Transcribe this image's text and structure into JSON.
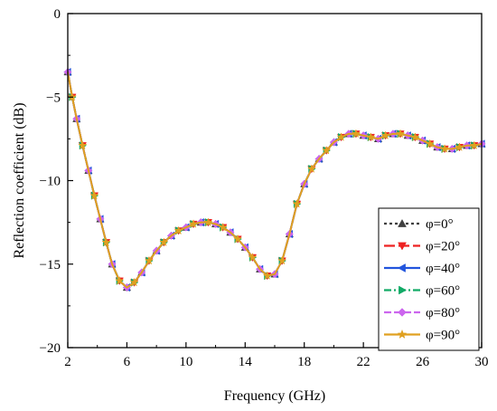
{
  "chart_data": {
    "type": "line",
    "title": "",
    "xlabel": "Frequency (GHz)",
    "ylabel": "Reflection coefficient (dB)",
    "xlim": [
      2,
      30
    ],
    "ylim": [
      -20,
      0
    ],
    "xticks": [
      "2",
      "6",
      "10",
      "14",
      "18",
      "22",
      "26",
      "30"
    ],
    "yticks": [
      "0",
      "-5",
      "-10",
      "-15",
      "-20"
    ],
    "grid": false,
    "legend_position": "bottom-right",
    "x": [
      2,
      2.3,
      2.6,
      3,
      3.4,
      3.8,
      4.2,
      4.6,
      5,
      5.5,
      6,
      6.5,
      7,
      7.5,
      8,
      8.5,
      9,
      9.5,
      10,
      10.5,
      11,
      11.5,
      12,
      12.5,
      13,
      13.5,
      14,
      14.5,
      15,
      15.5,
      16,
      16.5,
      17,
      17.5,
      18,
      18.5,
      19,
      19.5,
      20,
      20.5,
      21,
      21.5,
      22,
      22.5,
      23,
      23.5,
      24,
      24.5,
      25,
      25.5,
      26,
      26.5,
      27,
      27.5,
      28,
      28.5,
      29,
      29.5,
      30
    ],
    "series": [
      {
        "name": "φ=0°",
        "color": "#404040",
        "marker": "triangle-up",
        "dash": "3,3",
        "values": [
          -3.5,
          -5.0,
          -6.3,
          -7.9,
          -9.4,
          -10.9,
          -12.3,
          -13.7,
          -15.0,
          -16.0,
          -16.4,
          -16.1,
          -15.5,
          -14.8,
          -14.2,
          -13.7,
          -13.3,
          -13.0,
          -12.8,
          -12.6,
          -12.5,
          -12.5,
          -12.6,
          -12.8,
          -13.1,
          -13.5,
          -14.0,
          -14.6,
          -15.3,
          -15.7,
          -15.6,
          -14.8,
          -13.2,
          -11.4,
          -10.2,
          -9.3,
          -8.7,
          -8.2,
          -7.7,
          -7.4,
          -7.2,
          -7.2,
          -7.3,
          -7.4,
          -7.5,
          -7.3,
          -7.2,
          -7.2,
          -7.3,
          -7.4,
          -7.6,
          -7.8,
          -8.0,
          -8.1,
          -8.1,
          -8.0,
          -7.9,
          -7.9,
          -7.8
        ]
      },
      {
        "name": "φ=20°",
        "color": "#ee2222",
        "marker": "triangle-down",
        "dash": "12,4",
        "values": [
          -3.5,
          -5.0,
          -6.3,
          -7.9,
          -9.4,
          -10.9,
          -12.3,
          -13.7,
          -15.0,
          -16.0,
          -16.4,
          -16.1,
          -15.5,
          -14.8,
          -14.2,
          -13.7,
          -13.3,
          -13.0,
          -12.8,
          -12.6,
          -12.5,
          -12.5,
          -12.6,
          -12.8,
          -13.1,
          -13.5,
          -14.0,
          -14.6,
          -15.3,
          -15.7,
          -15.6,
          -14.8,
          -13.2,
          -11.4,
          -10.2,
          -9.3,
          -8.7,
          -8.2,
          -7.7,
          -7.4,
          -7.2,
          -7.2,
          -7.3,
          -7.4,
          -7.5,
          -7.3,
          -7.2,
          -7.2,
          -7.3,
          -7.4,
          -7.6,
          -7.8,
          -8.0,
          -8.1,
          -8.1,
          -8.0,
          -7.9,
          -7.9,
          -7.8
        ]
      },
      {
        "name": "φ=40°",
        "color": "#2255dd",
        "marker": "triangle-left",
        "dash": "",
        "values": [
          -3.5,
          -5.0,
          -6.3,
          -7.9,
          -9.4,
          -10.9,
          -12.3,
          -13.7,
          -15.0,
          -16.0,
          -16.4,
          -16.1,
          -15.5,
          -14.8,
          -14.2,
          -13.7,
          -13.3,
          -13.0,
          -12.8,
          -12.6,
          -12.5,
          -12.5,
          -12.6,
          -12.8,
          -13.1,
          -13.5,
          -14.0,
          -14.6,
          -15.3,
          -15.7,
          -15.6,
          -14.8,
          -13.2,
          -11.4,
          -10.2,
          -9.3,
          -8.7,
          -8.2,
          -7.7,
          -7.4,
          -7.2,
          -7.2,
          -7.3,
          -7.4,
          -7.5,
          -7.3,
          -7.2,
          -7.2,
          -7.3,
          -7.4,
          -7.6,
          -7.8,
          -8.0,
          -8.1,
          -8.1,
          -8.0,
          -7.9,
          -7.9,
          -7.8
        ]
      },
      {
        "name": "φ=60°",
        "color": "#11aa66",
        "marker": "triangle-right",
        "dash": "8,3,2,3",
        "values": [
          -3.5,
          -5.0,
          -6.3,
          -7.9,
          -9.4,
          -10.9,
          -12.3,
          -13.7,
          -15.0,
          -16.0,
          -16.4,
          -16.1,
          -15.5,
          -14.8,
          -14.2,
          -13.7,
          -13.3,
          -13.0,
          -12.8,
          -12.6,
          -12.5,
          -12.5,
          -12.6,
          -12.8,
          -13.1,
          -13.5,
          -14.0,
          -14.6,
          -15.3,
          -15.7,
          -15.6,
          -14.8,
          -13.2,
          -11.4,
          -10.2,
          -9.3,
          -8.7,
          -8.2,
          -7.7,
          -7.4,
          -7.2,
          -7.2,
          -7.3,
          -7.4,
          -7.5,
          -7.3,
          -7.2,
          -7.2,
          -7.3,
          -7.4,
          -7.6,
          -7.8,
          -8.0,
          -8.1,
          -8.1,
          -8.0,
          -7.9,
          -7.9,
          -7.8
        ]
      },
      {
        "name": "φ=80°",
        "color": "#cc66ee",
        "marker": "diamond",
        "dash": "8,3",
        "values": [
          -3.5,
          -5.0,
          -6.3,
          -7.9,
          -9.4,
          -10.9,
          -12.3,
          -13.7,
          -15.0,
          -16.0,
          -16.4,
          -16.1,
          -15.5,
          -14.8,
          -14.2,
          -13.7,
          -13.3,
          -13.0,
          -12.8,
          -12.6,
          -12.5,
          -12.5,
          -12.6,
          -12.8,
          -13.1,
          -13.5,
          -14.0,
          -14.6,
          -15.3,
          -15.7,
          -15.6,
          -14.8,
          -13.2,
          -11.4,
          -10.2,
          -9.3,
          -8.7,
          -8.2,
          -7.7,
          -7.4,
          -7.2,
          -7.2,
          -7.3,
          -7.4,
          -7.5,
          -7.3,
          -7.2,
          -7.2,
          -7.3,
          -7.4,
          -7.6,
          -7.8,
          -8.0,
          -8.1,
          -8.1,
          -8.0,
          -7.9,
          -7.9,
          -7.8
        ]
      },
      {
        "name": "φ=90°",
        "color": "#e0a020",
        "marker": "star",
        "dash": "",
        "values": [
          -3.5,
          -5.0,
          -6.3,
          -7.9,
          -9.4,
          -10.9,
          -12.3,
          -13.7,
          -15.0,
          -16.0,
          -16.4,
          -16.1,
          -15.5,
          -14.8,
          -14.2,
          -13.7,
          -13.3,
          -13.0,
          -12.8,
          -12.6,
          -12.5,
          -12.5,
          -12.6,
          -12.8,
          -13.1,
          -13.5,
          -14.0,
          -14.6,
          -15.3,
          -15.7,
          -15.6,
          -14.8,
          -13.2,
          -11.4,
          -10.2,
          -9.3,
          -8.7,
          -8.2,
          -7.7,
          -7.4,
          -7.2,
          -7.2,
          -7.3,
          -7.4,
          -7.5,
          -7.3,
          -7.2,
          -7.2,
          -7.3,
          -7.4,
          -7.6,
          -7.8,
          -8.0,
          -8.1,
          -8.1,
          -8.0,
          -7.9,
          -7.9,
          -7.8
        ]
      }
    ]
  }
}
